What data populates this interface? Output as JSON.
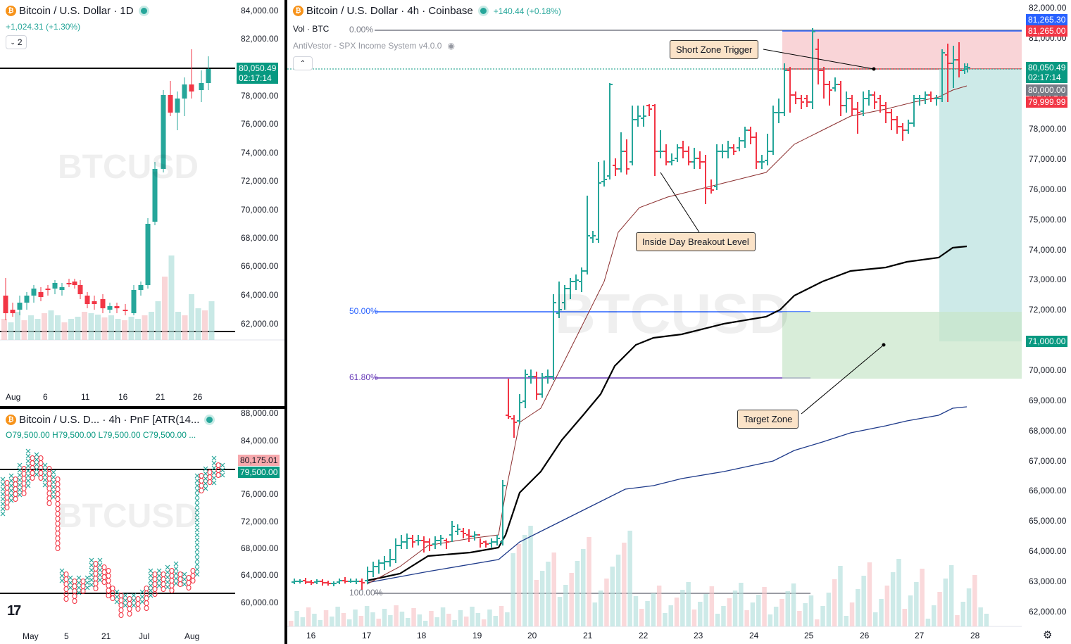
{
  "colors": {
    "up": "#26a69a",
    "down": "#f23645",
    "fib_blue": "#2962ff",
    "fib_purple": "#673ab7"
  },
  "left_top": {
    "title": "Bitcoin / U.S. Dollar · 1D",
    "change": "+1,024.31 (+1.30%)",
    "toggle": "2",
    "watermark": "BTCUSD",
    "price_axis": [
      "84,000.00",
      "82,000.00",
      "80,000.00",
      "78,000.00",
      "76,000.00",
      "74,000.00",
      "72,000.00",
      "70,000.00",
      "68,000.00",
      "66,000.00",
      "64,000.00",
      "62,000.00"
    ],
    "last_price": "80,050.49",
    "countdown": "02:17:14",
    "time_axis": [
      "Aug",
      "6",
      "11",
      "16",
      "21",
      "26"
    ]
  },
  "left_bottom": {
    "title": "Bitcoin / U.S. D... · 4h · PnF [ATR(14...",
    "ohlc": "O79,500.00 H79,500.00 L79,500.00 C79,500.00 ...",
    "watermark": "BTCUSD",
    "price_axis": [
      "88,000.00",
      "84,000.00",
      "76,000.00",
      "72,000.00",
      "68,000.00",
      "64,000.00",
      "60,000.00"
    ],
    "tag_upper": "80,175.01",
    "tag_lower": "79,500.00",
    "time_axis": [
      "May",
      "5",
      "21",
      "Jul",
      "Aug"
    ],
    "logo": "17"
  },
  "main": {
    "title": "Bitcoin / U.S. Dollar · 4h · Coinbase",
    "change": "+140.44 (+0.18%)",
    "volume_label": "Vol · BTC",
    "indicator": "AntiVestor - SPX Income System v4.0.0",
    "watermark": "BTCUSD",
    "fib_levels": [
      {
        "label": "0.00%"
      },
      {
        "label": "50.00%"
      },
      {
        "label": "61.80%"
      },
      {
        "label": "100.00%"
      }
    ],
    "notes": {
      "short_zone": "Short Zone Trigger",
      "inside_day": "Inside Day Breakout Level",
      "target": "Target Zone"
    },
    "price_axis": [
      "82,000.00",
      "81,000.00",
      "79,000.00",
      "78,000.00",
      "77,000.00",
      "76,000.00",
      "75,000.00",
      "74,000.00",
      "73,000.00",
      "72,000.00",
      "70,000.00",
      "69,000.00",
      "68,000.00",
      "67,000.00",
      "66,000.00",
      "65,000.00",
      "64,000.00",
      "63,000.00",
      "62,000.00"
    ],
    "tags": {
      "a": "81,265.30",
      "b": "81,265.00",
      "c": "80,050.49",
      "c2": "02:17:14",
      "d": "80,000.00",
      "e": "79,999.99",
      "f": "71,000.00"
    },
    "time_axis": [
      "16",
      "17",
      "18",
      "19",
      "20",
      "21",
      "22",
      "23",
      "24",
      "25",
      "26",
      "27",
      "28"
    ]
  }
}
